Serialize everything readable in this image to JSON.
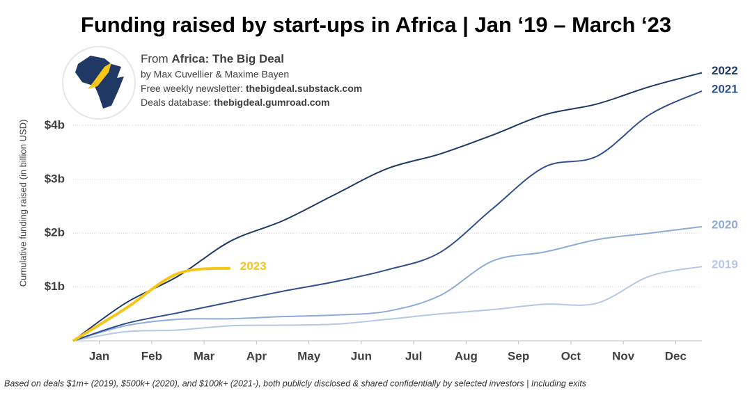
{
  "chart_data": {
    "type": "line",
    "title": "Funding raised by start-ups in Africa | Jan ‘19 – March ‘23",
    "source": {
      "prefix": "From",
      "name": "Africa: The Big Deal",
      "authors": "by Max Cuvellier & Maxime Bayen",
      "newsletter_label": "Free weekly newsletter:",
      "newsletter": "thebigdeal.substack.com",
      "database_label": "Deals database:",
      "database": "thebigdeal.gumroad.com"
    },
    "footnote": "Based on deals $1m+ (2019), $500k+ (2020), and $100k+ (2021-), both publicly disclosed & shared confidentially by selected investors | Including exits",
    "y_label": "Cumulative funding raised (in billion USD)",
    "x": [
      0,
      1,
      2,
      3,
      4,
      5,
      6,
      7,
      8,
      9,
      10,
      11,
      12
    ],
    "xlim": [
      0,
      12
    ],
    "xticks": [
      {
        "value": 0.5,
        "label": "Jan"
      },
      {
        "value": 1.5,
        "label": "Feb"
      },
      {
        "value": 2.5,
        "label": "Mar"
      },
      {
        "value": 3.5,
        "label": "Apr"
      },
      {
        "value": 4.5,
        "label": "May"
      },
      {
        "value": 5.5,
        "label": "Jun"
      },
      {
        "value": 6.5,
        "label": "Jul"
      },
      {
        "value": 7.5,
        "label": "Aug"
      },
      {
        "value": 8.5,
        "label": "Sep"
      },
      {
        "value": 9.5,
        "label": "Oct"
      },
      {
        "value": 10.5,
        "label": "Nov"
      },
      {
        "value": 11.5,
        "label": "Dec"
      }
    ],
    "ylim": [
      0,
      5
    ],
    "yticks": [
      {
        "value": 1,
        "label": "$1b"
      },
      {
        "value": 2,
        "label": "$2b"
      },
      {
        "value": 3,
        "label": "$3b"
      },
      {
        "value": 4,
        "label": "$4b"
      }
    ],
    "grid": true,
    "series": [
      {
        "name": "2019",
        "color": "#b4c7e7",
        "values": [
          0,
          0.17,
          0.2,
          0.28,
          0.29,
          0.31,
          0.4,
          0.5,
          0.58,
          0.68,
          0.7,
          1.2,
          1.38
        ]
      },
      {
        "name": "2020",
        "color": "#8eaadb",
        "values": [
          0,
          0.28,
          0.4,
          0.41,
          0.45,
          0.48,
          0.55,
          0.84,
          1.48,
          1.65,
          1.88,
          2.0,
          2.12
        ]
      },
      {
        "name": "2021",
        "color": "#2f4f8f",
        "values": [
          0,
          0.32,
          0.52,
          0.72,
          0.92,
          1.1,
          1.32,
          1.64,
          2.45,
          3.23,
          3.43,
          4.2,
          4.64
        ]
      },
      {
        "name": "2022",
        "color": "#1f3864",
        "values": [
          0,
          0.7,
          1.2,
          1.85,
          2.23,
          2.72,
          3.2,
          3.47,
          3.82,
          4.2,
          4.4,
          4.72,
          4.98
        ]
      },
      {
        "name": "2023",
        "color": "#f5c518",
        "values": [
          0,
          0.6,
          1.25,
          1.35,
          null,
          null,
          null,
          null,
          null,
          null,
          null,
          null,
          null
        ]
      }
    ]
  }
}
